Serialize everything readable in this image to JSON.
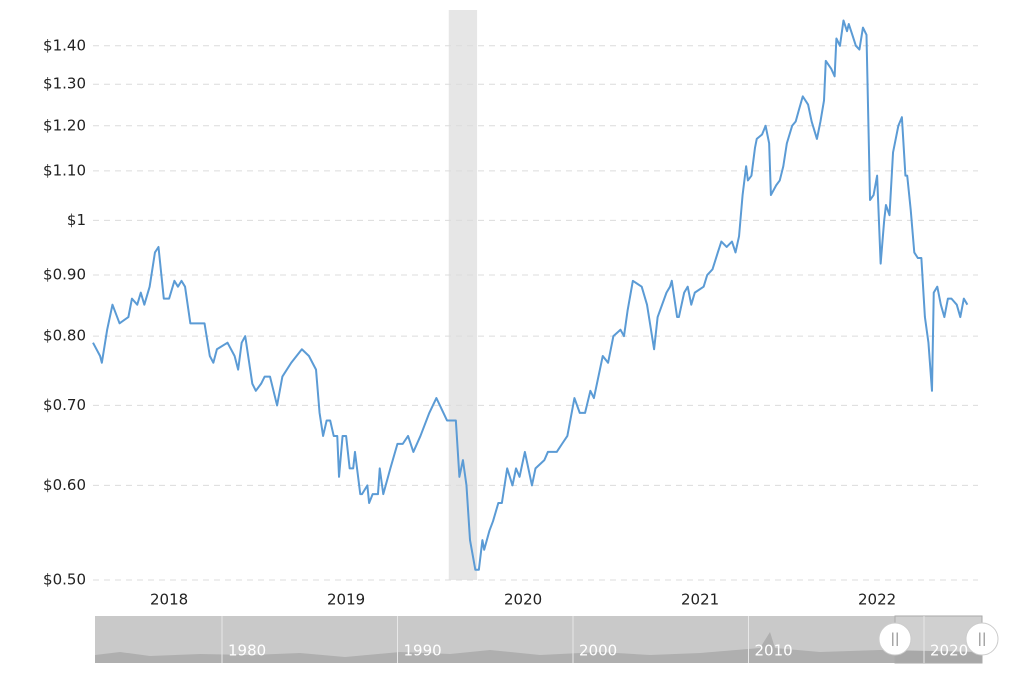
{
  "chart_data": {
    "type": "line",
    "color": "#5b9bd5",
    "log_scale": true,
    "grid": true,
    "xlim": [
      2018.07,
      2023.07
    ],
    "ylim": [
      0.5,
      1.5
    ],
    "xticks": [
      {
        "value": 2018.5,
        "label": "2018"
      },
      {
        "value": 2019.5,
        "label": "2019"
      },
      {
        "value": 2020.5,
        "label": "2020"
      },
      {
        "value": 2021.5,
        "label": "2021"
      },
      {
        "value": 2022.5,
        "label": "2022"
      }
    ],
    "yticks": [
      {
        "value": 0.5,
        "label": "$0.50"
      },
      {
        "value": 0.6,
        "label": "$0.60"
      },
      {
        "value": 0.7,
        "label": "$0.70"
      },
      {
        "value": 0.8,
        "label": "$0.80"
      },
      {
        "value": 0.9,
        "label": "$0.90"
      },
      {
        "value": 1,
        "label": "$1"
      },
      {
        "value": 1.1,
        "label": "$1.10"
      },
      {
        "value": 1.2,
        "label": "$1.20"
      },
      {
        "value": 1.3,
        "label": "$1.30"
      },
      {
        "value": 1.4,
        "label": "$1.40"
      }
    ],
    "recession": [
      2020.08,
      2020.24
    ],
    "x": [
      2018.07,
      2018.11,
      2018.12,
      2018.15,
      2018.18,
      2018.22,
      2018.27,
      2018.29,
      2018.32,
      2018.34,
      2018.36,
      2018.39,
      2018.42,
      2018.44,
      2018.47,
      2018.5,
      2018.53,
      2018.55,
      2018.57,
      2018.59,
      2018.62,
      2018.66,
      2018.7,
      2018.73,
      2018.75,
      2018.77,
      2018.83,
      2018.87,
      2018.89,
      2018.91,
      2018.93,
      2018.97,
      2018.99,
      2019.02,
      2019.04,
      2019.07,
      2019.11,
      2019.14,
      2019.19,
      2019.25,
      2019.29,
      2019.33,
      2019.35,
      2019.37,
      2019.39,
      2019.41,
      2019.43,
      2019.45,
      2019.46,
      2019.48,
      2019.5,
      2019.52,
      2019.54,
      2019.55,
      2019.58,
      2019.59,
      2019.62,
      2019.63,
      2019.65,
      2019.68,
      2019.69,
      2019.71,
      2019.75,
      2019.79,
      2019.82,
      2019.85,
      2019.88,
      2019.92,
      2019.97,
      2020.01,
      2020.03,
      2020.07,
      2020.1,
      2020.12,
      2020.14,
      2020.16,
      2020.18,
      2020.2,
      2020.23,
      2020.25,
      2020.27,
      2020.28,
      2020.31,
      2020.33,
      2020.36,
      2020.38,
      2020.41,
      2020.44,
      2020.46,
      2020.48,
      2020.5,
      2020.51,
      2020.55,
      2020.57,
      2020.62,
      2020.64,
      2020.69,
      2020.72,
      2020.75,
      2020.79,
      2020.82,
      2020.85,
      2020.88,
      2020.9,
      2020.95,
      2020.98,
      2021.01,
      2021.05,
      2021.07,
      2021.09,
      2021.12,
      2021.17,
      2021.2,
      2021.24,
      2021.26,
      2021.31,
      2021.33,
      2021.34,
      2021.37,
      2021.38,
      2021.41,
      2021.43,
      2021.45,
      2021.47,
      2021.52,
      2021.54,
      2021.57,
      2021.6,
      2021.62,
      2021.65,
      2021.68,
      2021.7,
      2021.72,
      2021.74,
      2021.76,
      2021.77,
      2021.79,
      2021.81,
      2021.82,
      2021.85,
      2021.87,
      2021.89,
      2021.9,
      2021.93,
      2021.95,
      2021.97,
      2021.99,
      2022.02,
      2022.04,
      2022.06,
      2022.08,
      2022.11,
      2022.13,
      2022.16,
      2022.18,
      2022.2,
      2022.21,
      2022.24,
      2022.26,
      2022.27,
      2022.29,
      2022.31,
      2022.33,
      2022.34,
      2022.36,
      2022.38,
      2022.4,
      2022.42,
      2022.44,
      2022.46,
      2022.48,
      2022.5,
      2022.52,
      2022.54,
      2022.55,
      2022.57,
      2022.59,
      2022.62,
      2022.64,
      2022.66,
      2022.67,
      2022.69,
      2022.71,
      2022.73,
      2022.75,
      2022.77,
      2022.79,
      2022.81,
      2022.82,
      2022.84,
      2022.86,
      2022.88,
      2022.9,
      2022.92,
      2022.95,
      2022.97,
      2022.99,
      2023.01
    ],
    "values": [
      0.79,
      0.77,
      0.76,
      0.81,
      0.85,
      0.82,
      0.83,
      0.86,
      0.85,
      0.87,
      0.85,
      0.88,
      0.94,
      0.95,
      0.86,
      0.86,
      0.89,
      0.88,
      0.89,
      0.88,
      0.82,
      0.82,
      0.82,
      0.77,
      0.76,
      0.78,
      0.79,
      0.77,
      0.75,
      0.79,
      0.8,
      0.73,
      0.72,
      0.73,
      0.74,
      0.74,
      0.7,
      0.74,
      0.76,
      0.78,
      0.77,
      0.75,
      0.69,
      0.66,
      0.68,
      0.68,
      0.66,
      0.66,
      0.61,
      0.66,
      0.66,
      0.62,
      0.62,
      0.64,
      0.59,
      0.59,
      0.6,
      0.58,
      0.59,
      0.59,
      0.62,
      0.59,
      0.62,
      0.65,
      0.65,
      0.66,
      0.64,
      0.66,
      0.69,
      0.71,
      0.7,
      0.68,
      0.68,
      0.68,
      0.61,
      0.63,
      0.6,
      0.54,
      0.51,
      0.51,
      0.54,
      0.53,
      0.55,
      0.56,
      0.58,
      0.58,
      0.62,
      0.6,
      0.62,
      0.61,
      0.63,
      0.64,
      0.6,
      0.62,
      0.63,
      0.64,
      0.64,
      0.65,
      0.66,
      0.71,
      0.69,
      0.69,
      0.72,
      0.71,
      0.77,
      0.76,
      0.8,
      0.81,
      0.8,
      0.84,
      0.89,
      0.88,
      0.85,
      0.78,
      0.83,
      0.87,
      0.88,
      0.89,
      0.83,
      0.83,
      0.87,
      0.88,
      0.85,
      0.87,
      0.88,
      0.9,
      0.91,
      0.94,
      0.96,
      0.95,
      0.96,
      0.94,
      0.97,
      1.05,
      1.11,
      1.08,
      1.09,
      1.15,
      1.17,
      1.18,
      1.2,
      1.16,
      1.05,
      1.07,
      1.08,
      1.11,
      1.16,
      1.2,
      1.21,
      1.24,
      1.27,
      1.25,
      1.21,
      1.17,
      1.21,
      1.26,
      1.36,
      1.34,
      1.32,
      1.42,
      1.4,
      1.47,
      1.44,
      1.46,
      1.43,
      1.4,
      1.39,
      1.45,
      1.43,
      1.04,
      1.05,
      1.09,
      0.92,
      1.0,
      1.03,
      1.01,
      1.14,
      1.2,
      1.22,
      1.09,
      1.09,
      1.02,
      0.94,
      0.93,
      0.93,
      0.83,
      0.79,
      0.72,
      0.87,
      0.88,
      0.85,
      0.83,
      0.86,
      0.86,
      0.85,
      0.83,
      0.86,
      0.85
    ]
  },
  "navigator": {
    "labels": [
      "1980",
      "1990",
      "2000",
      "2010",
      "2020"
    ]
  }
}
